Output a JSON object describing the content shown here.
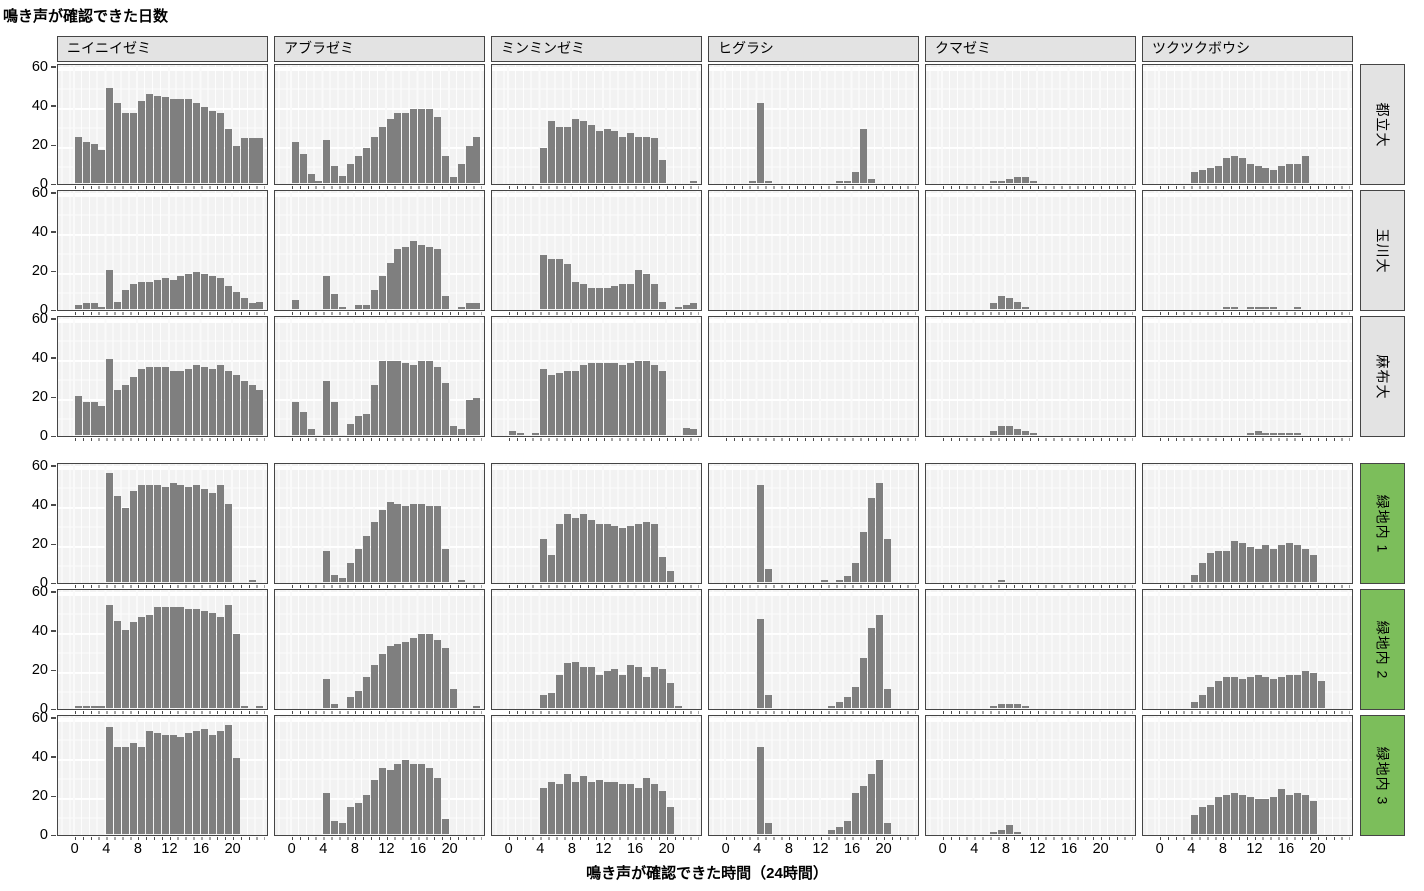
{
  "chart_data": {
    "type": "bar",
    "subtype": "faceted-histogram-grid",
    "title": "鳴き声が確認できた日数",
    "ylabel": "鳴き声が確認できた日数",
    "xlabel": "鳴き声が確認できた時間（24時間）",
    "x_ticks": [
      0,
      4,
      8,
      12,
      16,
      20
    ],
    "y_ticks": [
      60,
      40,
      20,
      0
    ],
    "ylim": [
      0,
      62
    ],
    "xlim": [
      0,
      24
    ],
    "grid": true,
    "bar_color": "#7f7f7f",
    "panel_bg": "#f2f2f2",
    "border_color": "#454545",
    "strip_gray": "#e3e3e3",
    "strip_green": "#7cbe5b",
    "facet_columns": [
      "ニイニイゼミ",
      "アブラゼミ",
      "ミンミンゼミ",
      "ヒグラシ",
      "クマゼミ",
      "ツクツクボウシ"
    ],
    "facet_rows": [
      {
        "label": "都立大",
        "strip_color": "#e3e3e3",
        "group": 1
      },
      {
        "label": "玉川大",
        "strip_color": "#e3e3e3",
        "group": 1
      },
      {
        "label": "麻布大",
        "strip_color": "#e3e3e3",
        "group": 1
      },
      {
        "label": "緑地内 1",
        "strip_color": "#7cbe5b",
        "group": 2
      },
      {
        "label": "緑地内 2",
        "strip_color": "#7cbe5b",
        "group": 2
      },
      {
        "label": "緑地内 3",
        "strip_color": "#7cbe5b",
        "group": 2
      }
    ],
    "hours": [
      0,
      1,
      2,
      3,
      4,
      5,
      6,
      7,
      8,
      9,
      10,
      11,
      12,
      13,
      14,
      15,
      16,
      17,
      18,
      19,
      20,
      21,
      22,
      23
    ],
    "values": {
      "都立大": {
        "ニイニイゼミ": [
          24,
          21,
          20,
          17,
          49,
          41,
          36,
          36,
          42,
          46,
          45,
          44,
          43,
          43,
          43,
          41,
          39,
          37,
          36,
          28,
          19,
          23,
          23,
          23
        ],
        "アブラゼミ": [
          21,
          15,
          5,
          1,
          22,
          9,
          4,
          10,
          14,
          18,
          24,
          29,
          33,
          36,
          36,
          38,
          38,
          38,
          34,
          14,
          3,
          10,
          19,
          24
        ],
        "ミンミンゼミ": [
          0,
          0,
          0,
          0,
          18,
          32,
          29,
          29,
          33,
          32,
          30,
          27,
          28,
          27,
          24,
          26,
          24,
          24,
          23,
          12,
          0,
          0,
          0,
          1
        ],
        "ヒグラシ": [
          0,
          0,
          0,
          1,
          41,
          1,
          0,
          0,
          0,
          0,
          0,
          0,
          0,
          0,
          1,
          1,
          6,
          28,
          2,
          0,
          0,
          0,
          0,
          0
        ],
        "クマゼミ": [
          0,
          0,
          0,
          0,
          0,
          0,
          1,
          1,
          2,
          3,
          3,
          1,
          0,
          0,
          0,
          0,
          0,
          0,
          0,
          0,
          0,
          0,
          0,
          0
        ],
        "ツクツクボウシ": [
          0,
          0,
          0,
          0,
          6,
          7,
          8,
          9,
          13,
          14,
          13,
          10,
          9,
          8,
          7,
          9,
          10,
          10,
          14,
          0,
          0,
          0,
          0,
          0
        ]
      },
      "玉川大": {
        "ニイニイゼミ": [
          2,
          3,
          3,
          1,
          20,
          4,
          10,
          13,
          14,
          14,
          15,
          16,
          15,
          17,
          18,
          19,
          18,
          17,
          16,
          12,
          9,
          6,
          3,
          4
        ],
        "アブラゼミ": [
          5,
          0,
          0,
          0,
          17,
          8,
          1,
          0,
          2,
          2,
          10,
          17,
          24,
          31,
          32,
          35,
          33,
          32,
          31,
          7,
          0,
          1,
          3,
          3
        ],
        "ミンミンゼミ": [
          0,
          0,
          0,
          0,
          28,
          26,
          26,
          23,
          14,
          13,
          11,
          11,
          11,
          12,
          13,
          13,
          20,
          18,
          13,
          4,
          0,
          1,
          2,
          3
        ],
        "ヒグラシ": [
          0,
          0,
          0,
          0,
          0,
          0,
          0,
          0,
          0,
          0,
          0,
          0,
          0,
          0,
          0,
          0,
          0,
          0,
          0,
          0,
          0,
          0,
          0,
          0
        ],
        "クマゼミ": [
          0,
          0,
          0,
          0,
          0,
          0,
          3,
          7,
          6,
          4,
          1,
          0,
          0,
          0,
          0,
          0,
          0,
          0,
          0,
          0,
          0,
          0,
          0,
          0
        ],
        "ツクツクボウシ": [
          0,
          0,
          0,
          0,
          0,
          0,
          0,
          0,
          1,
          1,
          0,
          1,
          1,
          1,
          1,
          0,
          0,
          1,
          0,
          0,
          0,
          0,
          0,
          0
        ]
      },
      "麻布大": {
        "ニイニイゼミ": [
          20,
          17,
          17,
          15,
          39,
          23,
          26,
          30,
          34,
          35,
          35,
          35,
          33,
          33,
          34,
          36,
          35,
          34,
          36,
          33,
          31,
          28,
          26,
          23
        ],
        "アブラゼミ": [
          17,
          12,
          3,
          0,
          28,
          17,
          0,
          6,
          10,
          11,
          26,
          38,
          38,
          38,
          37,
          36,
          38,
          38,
          35,
          27,
          5,
          3,
          18,
          19
        ],
        "ミンミンゼミ": [
          2,
          1,
          0,
          1,
          34,
          31,
          32,
          33,
          33,
          36,
          37,
          37,
          37,
          37,
          36,
          37,
          38,
          38,
          36,
          33,
          0,
          0,
          4,
          3
        ],
        "ヒグラシ": [
          0,
          0,
          0,
          0,
          0,
          0,
          0,
          0,
          0,
          0,
          0,
          0,
          0,
          0,
          0,
          0,
          0,
          0,
          0,
          0,
          0,
          0,
          0,
          0
        ],
        "クマゼミ": [
          0,
          0,
          0,
          0,
          0,
          0,
          2,
          5,
          5,
          3,
          2,
          1,
          0,
          0,
          0,
          0,
          0,
          0,
          0,
          0,
          0,
          0,
          0,
          0
        ],
        "ツクツクボウシ": [
          0,
          0,
          0,
          0,
          0,
          0,
          0,
          0,
          0,
          0,
          0,
          1,
          2,
          1,
          1,
          1,
          1,
          1,
          0,
          0,
          0,
          0,
          0,
          0
        ]
      },
      "緑地内 1": {
        "ニイニイゼミ": [
          0,
          0,
          0,
          0,
          56,
          44,
          38,
          47,
          50,
          50,
          50,
          49,
          51,
          50,
          49,
          50,
          48,
          46,
          50,
          40,
          0,
          0,
          1,
          0
        ],
        "アブラゼミ": [
          0,
          0,
          0,
          0,
          16,
          4,
          2,
          10,
          17,
          24,
          31,
          37,
          41,
          40,
          39,
          40,
          40,
          39,
          39,
          17,
          0,
          1,
          0,
          0
        ],
        "ミンミンゼミ": [
          0,
          0,
          0,
          0,
          22,
          14,
          30,
          35,
          33,
          35,
          32,
          30,
          30,
          29,
          28,
          29,
          30,
          31,
          30,
          13,
          6,
          0,
          0,
          0
        ],
        "ヒグラシ": [
          0,
          0,
          0,
          0,
          50,
          7,
          0,
          0,
          0,
          0,
          0,
          0,
          1,
          0,
          1,
          3,
          10,
          26,
          43,
          51,
          22,
          0,
          0,
          0
        ],
        "クマゼミ": [
          0,
          0,
          0,
          0,
          0,
          0,
          0,
          1,
          0,
          0,
          0,
          0,
          0,
          0,
          0,
          0,
          0,
          0,
          0,
          0,
          0,
          0,
          0,
          0
        ],
        "ツクツクボウシ": [
          0,
          0,
          0,
          0,
          4,
          10,
          15,
          16,
          16,
          21,
          20,
          18,
          17,
          19,
          17,
          19,
          20,
          19,
          17,
          14,
          0,
          0,
          0,
          0
        ]
      },
      "緑地内 2": {
        "ニイニイゼミ": [
          1,
          1,
          1,
          1,
          53,
          45,
          40,
          44,
          47,
          48,
          52,
          52,
          52,
          52,
          51,
          51,
          50,
          49,
          47,
          53,
          38,
          1,
          0,
          1
        ],
        "アブラゼミ": [
          0,
          0,
          0,
          0,
          15,
          2,
          0,
          6,
          9,
          16,
          22,
          28,
          32,
          33,
          34,
          36,
          38,
          38,
          35,
          31,
          10,
          0,
          0,
          1
        ],
        "ミンミンゼミ": [
          0,
          0,
          0,
          0,
          7,
          8,
          17,
          23,
          24,
          21,
          21,
          17,
          19,
          20,
          17,
          22,
          21,
          16,
          21,
          20,
          13,
          1,
          0,
          0
        ],
        "ヒグラシ": [
          0,
          0,
          0,
          0,
          46,
          7,
          0,
          0,
          0,
          0,
          0,
          0,
          0,
          1,
          3,
          6,
          11,
          26,
          41,
          48,
          10,
          0,
          0,
          0
        ],
        "クマゼミ": [
          0,
          0,
          0,
          0,
          0,
          0,
          1,
          2,
          2,
          2,
          1,
          0,
          0,
          0,
          0,
          0,
          0,
          0,
          0,
          0,
          0,
          0,
          0,
          0
        ],
        "ツクツクボウシ": [
          0,
          0,
          0,
          0,
          3,
          7,
          11,
          14,
          16,
          16,
          15,
          16,
          17,
          16,
          15,
          16,
          17,
          17,
          19,
          18,
          14,
          0,
          0,
          0
        ]
      },
      "緑地内 3": {
        "ニイニイゼミ": [
          0,
          0,
          0,
          0,
          55,
          45,
          45,
          47,
          45,
          53,
          52,
          51,
          51,
          50,
          52,
          53,
          54,
          51,
          53,
          56,
          39,
          0,
          0,
          0
        ],
        "アブラゼミ": [
          0,
          0,
          0,
          0,
          21,
          7,
          6,
          14,
          16,
          20,
          28,
          34,
          33,
          36,
          38,
          36,
          36,
          34,
          29,
          8,
          0,
          0,
          0,
          0
        ],
        "ミンミンゼミ": [
          0,
          0,
          0,
          0,
          24,
          27,
          26,
          31,
          27,
          30,
          27,
          28,
          27,
          27,
          26,
          26,
          24,
          29,
          26,
          22,
          14,
          0,
          0,
          0
        ],
        "ヒグラシ": [
          0,
          0,
          0,
          0,
          45,
          6,
          0,
          0,
          0,
          0,
          0,
          0,
          0,
          2,
          4,
          7,
          21,
          25,
          31,
          38,
          6,
          0,
          0,
          0
        ],
        "クマゼミ": [
          0,
          0,
          0,
          0,
          0,
          0,
          1,
          2,
          5,
          1,
          0,
          0,
          0,
          0,
          0,
          0,
          0,
          0,
          0,
          0,
          0,
          0,
          0,
          0
        ],
        "ツクツクボウシ": [
          0,
          0,
          0,
          0,
          10,
          14,
          15,
          19,
          20,
          21,
          20,
          19,
          18,
          18,
          19,
          23,
          20,
          21,
          20,
          17,
          0,
          0,
          0,
          0
        ]
      }
    }
  }
}
